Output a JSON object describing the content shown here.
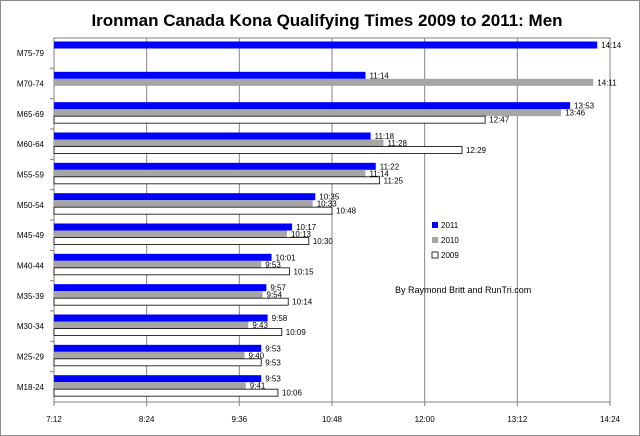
{
  "chart_data": {
    "type": "bar",
    "orientation": "horizontal",
    "title": "Ironman Canada Kona Qualifying Times 2009 to 2011: Men",
    "categories": [
      "M75-79",
      "M70-74",
      "M65-69",
      "M60-64",
      "M55-59",
      "M50-54",
      "M45-49",
      "M40-44",
      "M35-39",
      "M30-34",
      "M25-29",
      "M18-24"
    ],
    "series": [
      {
        "name": "2011",
        "color": "#0000ff",
        "values": [
          "14:14",
          "11:14",
          "13:53",
          "11:18",
          "11:22",
          "10:35",
          "10:17",
          "10:01",
          "9:57",
          "9:58",
          "9:53",
          "9:53"
        ]
      },
      {
        "name": "2010",
        "color": "#a6a6a6",
        "values": [
          null,
          "14:11",
          "13:46",
          "11:28",
          "11:14",
          "10:33",
          "10:13",
          "9:53",
          "9:54",
          "9:43",
          "9:40",
          "9:41"
        ]
      },
      {
        "name": "2009",
        "color": "#ffffff",
        "values": [
          null,
          null,
          "12:47",
          "12:29",
          "11:25",
          "10:48",
          "10:30",
          "10:15",
          "10:14",
          "10:09",
          "9:53",
          "10:06"
        ]
      }
    ],
    "x_ticks": [
      "7:12",
      "8:24",
      "9:36",
      "10:48",
      "12:00",
      "13:12",
      "14:24"
    ],
    "xlim": [
      "7:12",
      "14:24"
    ],
    "grid": true,
    "legend_position": "right",
    "annotation": "By Raymond Britt and RunTri.com"
  }
}
